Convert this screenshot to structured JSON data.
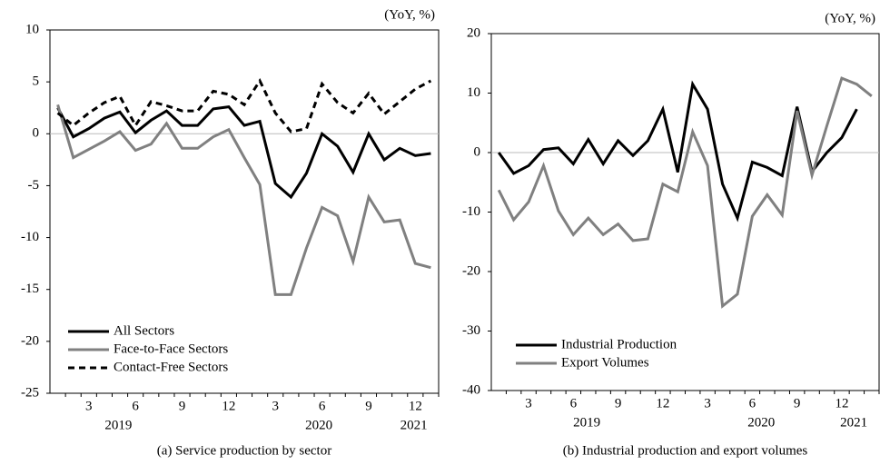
{
  "chart_data": [
    {
      "type": "line",
      "title": "(a) Service production by sector",
      "unit_label": "(YoY, %)",
      "categories": [
        null,
        null,
        "3",
        null,
        null,
        "6",
        null,
        null,
        "9",
        null,
        null,
        "12",
        null,
        null,
        "3",
        null,
        null,
        "6",
        null,
        null,
        "9",
        null,
        null,
        "12",
        null
      ],
      "years": [
        "2019",
        "2020",
        "2021"
      ],
      "series": [
        {
          "name": "All Sectors",
          "color": "#000000",
          "dash": false,
          "values": [
            2.5,
            -0.3,
            0.5,
            1.5,
            2.1,
            0.1,
            1.3,
            2.2,
            0.8,
            0.8,
            2.4,
            2.6,
            0.8,
            1.2,
            -4.8,
            -6.1,
            -3.8,
            0.0,
            -1.2,
            -3.7,
            0.0,
            -2.5,
            -1.4,
            -2.1,
            -1.9
          ]
        },
        {
          "name": "Face-to-Face Sectors",
          "color": "#808080",
          "dash": false,
          "values": [
            2.8,
            -2.3,
            -1.5,
            -0.7,
            0.2,
            -1.6,
            -1.0,
            1.0,
            -1.4,
            -1.4,
            -0.3,
            0.4,
            -2.3,
            -4.9,
            -15.5,
            -15.5,
            -11.0,
            -7.1,
            -7.9,
            -12.3,
            -6.1,
            -8.5,
            -8.3,
            -12.5,
            -12.9
          ]
        },
        {
          "name": "Contact-Free Sectors",
          "color": "#000000",
          "dash": true,
          "values": [
            2.0,
            0.8,
            2.0,
            3.0,
            3.6,
            0.8,
            3.1,
            2.7,
            2.2,
            2.2,
            4.1,
            3.8,
            2.8,
            5.1,
            2.0,
            0.2,
            0.5,
            4.8,
            3.0,
            2.0,
            3.9,
            1.9,
            3.1,
            4.3,
            5.1
          ]
        }
      ],
      "ylim": [
        -25,
        10
      ],
      "yticks": [
        -25,
        -20,
        -15,
        -10,
        -5,
        0,
        5,
        10
      ],
      "hline": 0,
      "legend": "lower left"
    },
    {
      "type": "line",
      "title": "(b) Industrial production and export volumes",
      "unit_label": "(YoY, %)",
      "categories": [
        null,
        null,
        "3",
        null,
        null,
        "6",
        null,
        null,
        "9",
        null,
        null,
        "12",
        null,
        null,
        "3",
        null,
        null,
        "6",
        null,
        null,
        "9",
        null,
        null,
        "12",
        null,
        null
      ],
      "years": [
        "2019",
        "2020",
        "2021"
      ],
      "series": [
        {
          "name": "Industrial Production",
          "color": "#000000",
          "dash": false,
          "values": [
            0.0,
            -3.5,
            -2.2,
            0.5,
            0.8,
            -1.9,
            2.2,
            -1.9,
            2.0,
            -0.5,
            2.0,
            7.3,
            -3.3,
            11.5,
            7.3,
            -5.3,
            -11.0,
            -1.6,
            -2.5,
            -3.9,
            7.7,
            -3.2,
            0.0,
            2.5,
            7.3,
            null
          ]
        },
        {
          "name": "Export Volumes",
          "color": "#808080",
          "dash": false,
          "values": [
            -6.3,
            -11.3,
            -8.3,
            -2.2,
            -9.8,
            -13.8,
            -11.0,
            -13.8,
            -12.0,
            -14.8,
            -14.5,
            -5.3,
            -6.6,
            3.5,
            -2.2,
            -25.8,
            -23.8,
            -10.7,
            -7.1,
            -10.5,
            7.0,
            -3.8,
            4.5,
            12.5,
            11.5,
            9.5
          ]
        }
      ],
      "ylim": [
        -40,
        20
      ],
      "yticks": [
        -40,
        -30,
        -20,
        -10,
        0,
        10,
        20
      ],
      "hline": 0,
      "legend": "lower left"
    }
  ]
}
